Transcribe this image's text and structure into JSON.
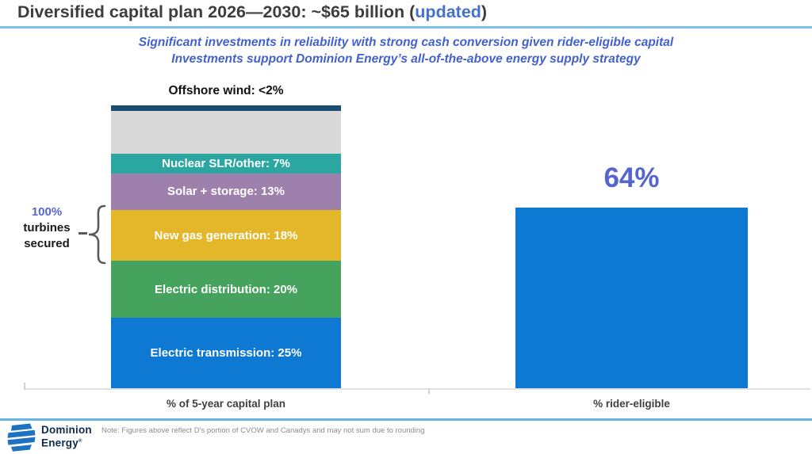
{
  "slide": {
    "title": {
      "text_before": "Diversified capital plan 2026—2030: ~$65 billion (",
      "highlight": "updated",
      "text_after": ")"
    },
    "subtitle_line1": "Significant investments in reliability with strong cash conversion given rider-eligible capital",
    "subtitle_line2": "Investments support Dominion Energy’s all-of-the-above energy supply strategy",
    "annotation": {
      "line1": "100%",
      "line2": "turbines",
      "line3": "secured"
    },
    "footer": {
      "logo_line1": "Dominion",
      "logo_line2": "Energy",
      "registered": "®",
      "note": "Note: Figures above reflect D’s portion of CVOW and Canadys and may not sum due to rounding"
    }
  },
  "chart_data": {
    "type": "bar",
    "title": "Diversified capital plan 2026—2030: ~$65 billion (updated)",
    "categories": [
      "% of 5-year capital plan",
      "% rider-eligible"
    ],
    "ylim": [
      0,
      100
    ],
    "grid": false,
    "offshore_callout": "Offshore wind: <2%",
    "stacked_segments_top_to_bottom": [
      {
        "name": "Offshore wind",
        "value": 2,
        "value_display": "<2%",
        "label_in_bar": "",
        "color": "#1b4d72"
      },
      {
        "name": "",
        "value": 15,
        "value_display": "",
        "label_in_bar": "",
        "color": "#d9d9d9"
      },
      {
        "name": "Nuclear SLR/other",
        "value": 7,
        "value_display": "7%",
        "label_in_bar": "Nuclear SLR/other: 7%",
        "color": "#2ca6a0"
      },
      {
        "name": "Solar + storage",
        "value": 13,
        "value_display": "13%",
        "label_in_bar": "Solar + storage: 13%",
        "color": "#9d80ab"
      },
      {
        "name": "New gas generation",
        "value": 18,
        "value_display": "18%",
        "label_in_bar": "New gas generation: 18%",
        "color": "#e3b729"
      },
      {
        "name": "Electric distribution",
        "value": 20,
        "value_display": "20%",
        "label_in_bar": "Electric distribution: 20%",
        "color": "#46a35e"
      },
      {
        "name": "Electric transmission",
        "value": 25,
        "value_display": "25%",
        "label_in_bar": "Electric transmission: 25%",
        "color": "#0d79d3"
      }
    ],
    "rider_bar": {
      "category": "% rider-eligible",
      "value": 64,
      "label": "64%",
      "color": "#0d79d3"
    }
  },
  "colors": {
    "title_text": "#3d3d3d",
    "title_highlight": "#4472c8",
    "title_underline": "#7cc0e5",
    "subtitle_text": "#4361cb",
    "accent_blueviolet": "#5565d0",
    "footer_separator": "#66b5e2",
    "logo_navy": "#0e2b4a",
    "logo_blue": "#1e72c2",
    "axis_line": "#e2e2e2",
    "note_gray": "#8c8c8c"
  }
}
